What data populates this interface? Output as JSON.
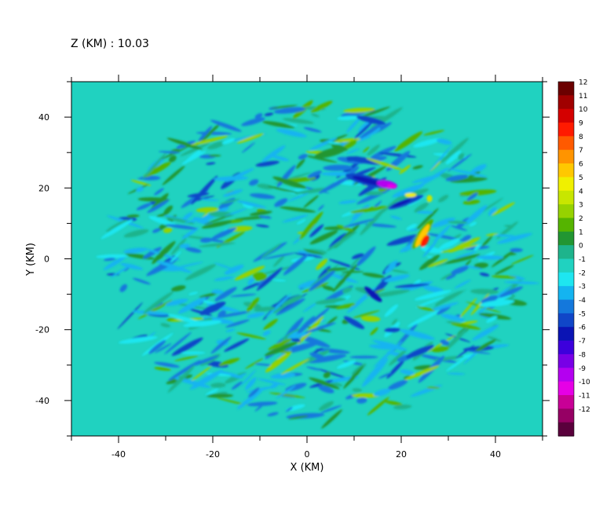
{
  "chart_data": {
    "type": "heatmap",
    "title": "Z (KM) : 10.03",
    "xlabel": "X (KM)",
    "ylabel": "Y (KM)",
    "xlim": [
      -50,
      50
    ],
    "ylim": [
      -50,
      50
    ],
    "x_ticks": [
      "-40",
      "-20",
      "0",
      "20",
      "40"
    ],
    "y_ticks": [
      "-40",
      "-20",
      "0",
      "20",
      "40"
    ],
    "x_tick_values": [
      -40,
      -20,
      0,
      20,
      40
    ],
    "y_tick_values": [
      -40,
      -20,
      0,
      20,
      40
    ],
    "colorbar": {
      "levels": [
        "12",
        "11",
        "10",
        "9",
        "8",
        "7",
        "6",
        "5",
        "4",
        "3",
        "2",
        "1",
        "0",
        "-1",
        "-2",
        "-3",
        "-4",
        "-5",
        "-6",
        "-7",
        "-8",
        "-9",
        "-10",
        "-11",
        "-12"
      ],
      "colors": [
        "#6b0000",
        "#a00000",
        "#d40000",
        "#ff1a00",
        "#ff5a00",
        "#ff9400",
        "#ffc800",
        "#f0f000",
        "#c8e600",
        "#96d200",
        "#55b400",
        "#229632",
        "#1eb48c",
        "#20d2c0",
        "#1ee6f0",
        "#14b4f0",
        "#1478dc",
        "#1046c8",
        "#0a14b4",
        "#3c00dc",
        "#7800e6",
        "#b400f0",
        "#e600e6",
        "#c80096",
        "#960064",
        "#5a003c"
      ]
    },
    "features": [
      {
        "x": 25,
        "y": 5,
        "value": 9,
        "color": "#ff1a00"
      },
      {
        "x": 24,
        "y": 7,
        "value": 6,
        "color": "#ffc800"
      },
      {
        "x": 17,
        "y": 21,
        "value": -7,
        "color": "#b400f0"
      },
      {
        "x": 13,
        "y": 22,
        "value": -5,
        "color": "#0a14b4"
      },
      {
        "x": 21,
        "y": 16,
        "value": -5,
        "color": "#0a14b4"
      },
      {
        "x": 14,
        "y": -10,
        "value": -5,
        "color": "#0a14b4"
      },
      {
        "x": -20,
        "y": -14,
        "value": -3,
        "color": "#1046c8"
      },
      {
        "x": 5,
        "y": 30,
        "value": 3,
        "color": "#229632"
      },
      {
        "x": -10,
        "y": -5,
        "value": 2,
        "color": "#55b400"
      },
      {
        "x": 10,
        "y": -18,
        "value": -3,
        "color": "#1046c8"
      }
    ]
  }
}
